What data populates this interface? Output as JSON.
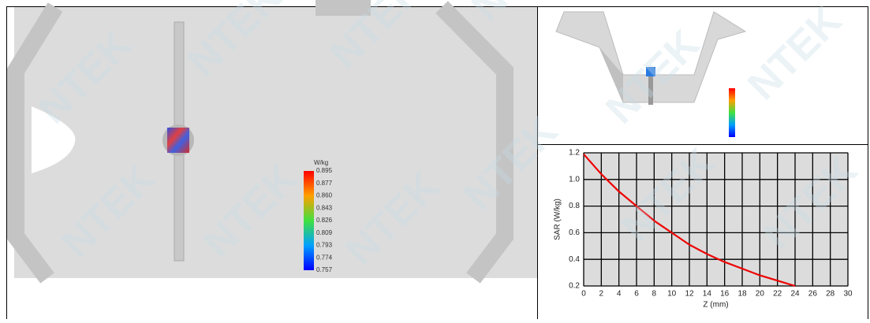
{
  "watermark": "NTEK",
  "left_image": {
    "scale_unit": "W/kg",
    "scale_labels": [
      "0.895",
      "0.877",
      "0.860",
      "0.843",
      "0.826",
      "0.809",
      "0.793",
      "0.774",
      "0.757"
    ]
  },
  "chart_data": {
    "type": "line",
    "xlabel": "Z (mm)",
    "ylabel": "SAR (W/kg)",
    "x": [
      0,
      2,
      4,
      6,
      8,
      10,
      12,
      14,
      16,
      18,
      20,
      22,
      24
    ],
    "series": [
      {
        "color": "#ee0000",
        "values": [
          1.19,
          1.04,
          0.91,
          0.8,
          0.69,
          0.6,
          0.51,
          0.44,
          0.38,
          0.33,
          0.28,
          0.24,
          0.2
        ]
      }
    ],
    "xlim": [
      0,
      30
    ],
    "xticks": [
      0,
      2,
      4,
      6,
      8,
      10,
      12,
      14,
      16,
      18,
      20,
      22,
      24,
      26,
      28,
      30
    ],
    "ylim": [
      0.2,
      1.2
    ],
    "yticks": [
      0.2,
      0.4,
      0.6,
      0.8,
      {
        "value": 1,
        "label": "1.0"
      },
      1.2
    ],
    "grid": true
  }
}
